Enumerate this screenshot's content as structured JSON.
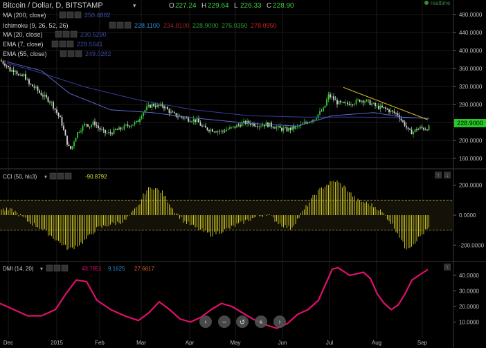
{
  "header": {
    "title": "Bitcoin / Dollar, D, BITSTAMP",
    "ohlc": [
      {
        "k": "O",
        "v": "227.24"
      },
      {
        "k": "H",
        "v": "229.64"
      },
      {
        "k": "L",
        "v": "226.33"
      },
      {
        "k": "C",
        "v": "228.90"
      }
    ],
    "realtime": "realtime"
  },
  "indicators": [
    {
      "label": "MA (200, close)",
      "values": [
        {
          "v": "250.4882",
          "color": "#3a4aa0"
        }
      ]
    },
    {
      "label": "Ichimoku (9, 26, 52, 26)",
      "values": [
        {
          "v": "228.1100",
          "color": "#2a8fd8"
        },
        {
          "v": "234.8100",
          "color": "#a02020"
        },
        {
          "v": "228.9000",
          "color": "#2aa02a"
        },
        {
          "v": "276.0350",
          "color": "#2aa02a"
        },
        {
          "v": "278.0950",
          "color": "#d02020"
        }
      ]
    },
    {
      "label": "MA (20, close)",
      "values": [
        {
          "v": "230.5290",
          "color": "#3a4aa0"
        }
      ]
    },
    {
      "label": "EMA (7, close)",
      "values": [
        {
          "v": "228.5641",
          "color": "#3a4aa0"
        }
      ]
    },
    {
      "label": "EMA (55, close)",
      "values": [
        {
          "v": "249.0282",
          "color": "#3a4aa0"
        }
      ]
    }
  ],
  "cci_panel": {
    "label": "CCI (50, hlc3)",
    "value": "-90.8792",
    "value_color": "#e0e040"
  },
  "dmi_panel": {
    "label": "DMI (14, 20)",
    "values": [
      {
        "v": "43.7851",
        "color": "#e0106a"
      },
      {
        "v": "9.1625",
        "color": "#2a8fd8"
      },
      {
        "v": "27.6617",
        "color": "#e86020"
      }
    ]
  },
  "price_badge": "228.9000",
  "colors": {
    "up": "#33cc33",
    "down": "#d8d8d8",
    "cci": "#c8c020",
    "dmi": "#e0106a",
    "trend": "#d8c020"
  },
  "chart_data": [
    {
      "type": "candlestick",
      "x": [
        "Dec",
        "2015",
        "Feb",
        "Mar",
        "Apr",
        "May",
        "Jun",
        "Jul",
        "Aug",
        "Sep"
      ],
      "y_ticks": [
        "480.0000",
        "440.0000",
        "400.0000",
        "360.0000",
        "320.0000",
        "280.0000",
        "240.0000",
        "200.0000",
        "160.0000"
      ],
      "ylim": [
        140,
        500
      ],
      "close_approx": [
        [
          0,
          378
        ],
        [
          8,
          370
        ],
        [
          15,
          355
        ],
        [
          22,
          358
        ],
        [
          28,
          340
        ],
        [
          35,
          345
        ],
        [
          42,
          325
        ],
        [
          50,
          318
        ],
        [
          58,
          305
        ],
        [
          66,
          295
        ],
        [
          74,
          285
        ],
        [
          82,
          262
        ],
        [
          88,
          245
        ],
        [
          94,
          210
        ],
        [
          99,
          185
        ],
        [
          103,
          180
        ],
        [
          108,
          205
        ],
        [
          113,
          220
        ],
        [
          118,
          228
        ],
        [
          124,
          238
        ],
        [
          130,
          232
        ],
        [
          136,
          240
        ],
        [
          142,
          228
        ],
        [
          150,
          218
        ],
        [
          158,
          215
        ],
        [
          166,
          222
        ],
        [
          174,
          225
        ],
        [
          182,
          232
        ],
        [
          190,
          236
        ],
        [
          198,
          240
        ],
        [
          205,
          260
        ],
        [
          212,
          272
        ],
        [
          220,
          280
        ],
        [
          228,
          276
        ],
        [
          235,
          278
        ],
        [
          242,
          268
        ],
        [
          248,
          260
        ],
        [
          255,
          255
        ],
        [
          262,
          252
        ],
        [
          270,
          248
        ],
        [
          278,
          246
        ],
        [
          285,
          243
        ],
        [
          292,
          230
        ],
        [
          298,
          226
        ],
        [
          305,
          224
        ],
        [
          312,
          222
        ],
        [
          320,
          220
        ],
        [
          328,
          225
        ],
        [
          336,
          228
        ],
        [
          345,
          235
        ],
        [
          355,
          240
        ],
        [
          365,
          237
        ],
        [
          375,
          234
        ],
        [
          385,
          236
        ],
        [
          395,
          232
        ],
        [
          405,
          226
        ],
        [
          415,
          224
        ],
        [
          425,
          228
        ],
        [
          432,
          232
        ],
        [
          440,
          238
        ],
        [
          448,
          245
        ],
        [
          455,
          250
        ],
        [
          462,
          262
        ],
        [
          468,
          270
        ],
        [
          474,
          300
        ],
        [
          480,
          295
        ],
        [
          486,
          285
        ],
        [
          492,
          282
        ],
        [
          498,
          280
        ],
        [
          505,
          283
        ],
        [
          512,
          285
        ],
        [
          520,
          290
        ],
        [
          528,
          288
        ],
        [
          536,
          282
        ],
        [
          544,
          275
        ],
        [
          552,
          272
        ],
        [
          560,
          268
        ],
        [
          568,
          262
        ],
        [
          575,
          258
        ],
        [
          580,
          244
        ],
        [
          585,
          235
        ],
        [
          590,
          220
        ],
        [
          596,
          218
        ],
        [
          602,
          225
        ],
        [
          608,
          228
        ],
        [
          614,
          226
        ],
        [
          620,
          229
        ]
      ],
      "ma200_approx": [
        [
          10,
          372
        ],
        [
          60,
          350
        ],
        [
          120,
          320
        ],
        [
          200,
          290
        ],
        [
          280,
          268
        ],
        [
          360,
          255
        ],
        [
          440,
          252
        ],
        [
          520,
          252
        ],
        [
          600,
          250
        ],
        [
          620,
          250
        ]
      ],
      "ema55_approx": [
        [
          10,
          375
        ],
        [
          60,
          355
        ],
        [
          100,
          305
        ],
        [
          160,
          268
        ],
        [
          220,
          262
        ],
        [
          280,
          250
        ],
        [
          360,
          238
        ],
        [
          430,
          232
        ],
        [
          480,
          255
        ],
        [
          540,
          262
        ],
        [
          580,
          252
        ],
        [
          620,
          249
        ]
      ],
      "trend_line": [
        [
          496,
          318
        ],
        [
          618,
          246
        ]
      ]
    },
    {
      "type": "bar",
      "name": "CCI",
      "y_ticks": [
        "200.0000",
        "0.0000",
        "-200.0000"
      ],
      "ylim": [
        -300,
        300
      ],
      "bands": [
        100,
        -100
      ],
      "values_approx": [
        [
          0,
          40
        ],
        [
          20,
          30
        ],
        [
          40,
          -40
        ],
        [
          60,
          -90
        ],
        [
          80,
          -160
        ],
        [
          100,
          -230
        ],
        [
          120,
          -180
        ],
        [
          140,
          -90
        ],
        [
          160,
          -60
        ],
        [
          180,
          -40
        ],
        [
          200,
          60
        ],
        [
          210,
          160
        ],
        [
          220,
          190
        ],
        [
          235,
          150
        ],
        [
          250,
          40
        ],
        [
          265,
          -40
        ],
        [
          285,
          -90
        ],
        [
          305,
          -130
        ],
        [
          325,
          -100
        ],
        [
          345,
          -60
        ],
        [
          365,
          -20
        ],
        [
          385,
          10
        ],
        [
          405,
          -60
        ],
        [
          420,
          -90
        ],
        [
          440,
          40
        ],
        [
          455,
          140
        ],
        [
          470,
          200
        ],
        [
          485,
          230
        ],
        [
          500,
          180
        ],
        [
          515,
          100
        ],
        [
          530,
          80
        ],
        [
          545,
          50
        ],
        [
          560,
          -20
        ],
        [
          575,
          -120
        ],
        [
          585,
          -220
        ],
        [
          595,
          -200
        ],
        [
          605,
          -150
        ],
        [
          618,
          -91
        ]
      ]
    },
    {
      "type": "line",
      "name": "DMI",
      "y_ticks": [
        "40.0000",
        "30.0000",
        "20.0000",
        "10.0000"
      ],
      "ylim": [
        0,
        48
      ],
      "values_approx": [
        [
          0,
          22
        ],
        [
          20,
          18
        ],
        [
          40,
          14
        ],
        [
          60,
          14
        ],
        [
          80,
          18
        ],
        [
          95,
          28
        ],
        [
          110,
          37
        ],
        [
          125,
          36
        ],
        [
          140,
          24
        ],
        [
          160,
          18
        ],
        [
          180,
          14
        ],
        [
          200,
          11
        ],
        [
          215,
          16
        ],
        [
          230,
          23
        ],
        [
          245,
          18
        ],
        [
          260,
          12
        ],
        [
          275,
          10
        ],
        [
          290,
          13
        ],
        [
          305,
          18
        ],
        [
          320,
          22
        ],
        [
          335,
          20
        ],
        [
          350,
          16
        ],
        [
          365,
          12
        ],
        [
          385,
          8
        ],
        [
          400,
          6
        ],
        [
          415,
          9
        ],
        [
          430,
          15
        ],
        [
          445,
          18
        ],
        [
          460,
          24
        ],
        [
          472,
          36
        ],
        [
          480,
          44
        ],
        [
          488,
          45
        ],
        [
          495,
          43
        ],
        [
          505,
          40
        ],
        [
          515,
          41
        ],
        [
          525,
          42
        ],
        [
          535,
          38
        ],
        [
          545,
          28
        ],
        [
          555,
          22
        ],
        [
          565,
          18
        ],
        [
          575,
          21
        ],
        [
          585,
          28
        ],
        [
          595,
          37
        ],
        [
          605,
          40
        ],
        [
          612,
          42
        ],
        [
          618,
          43.8
        ]
      ]
    }
  ]
}
